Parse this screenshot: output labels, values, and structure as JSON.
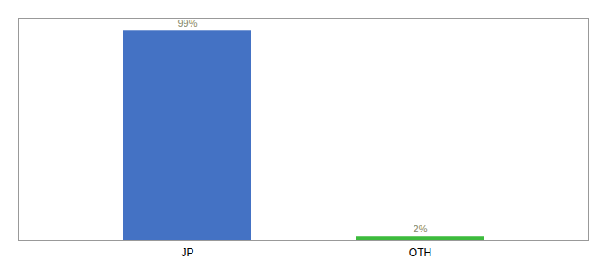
{
  "chart_data": {
    "type": "bar",
    "categories": [
      "JP",
      "OTH"
    ],
    "values": [
      99,
      2
    ],
    "value_labels": [
      "99%",
      "2%"
    ],
    "colors": [
      "#4472c4",
      "#3dbb3d"
    ],
    "ylim": [
      0,
      105
    ],
    "data_labels": true,
    "tick_labels": "x",
    "grid": false
  }
}
